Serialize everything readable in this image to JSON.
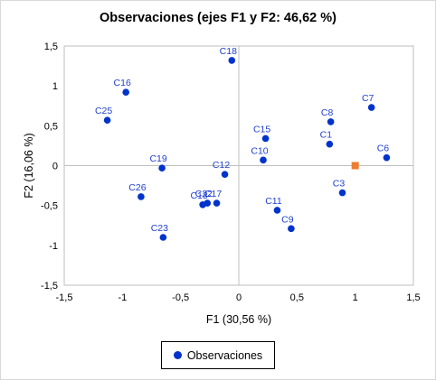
{
  "chart_data": {
    "type": "scatter",
    "title": "Observaciones (ejes F1 y F2: 46,62 %)",
    "xlabel": "F1 (30,56 %)",
    "ylabel": "F2 (16,06 %)",
    "xlim": [
      -1.5,
      1.5
    ],
    "ylim": [
      -1.5,
      1.5
    ],
    "xticks": [
      "-1,5",
      "-1",
      "-0,5",
      "0",
      "0,5",
      "1",
      "1,5"
    ],
    "yticks": [
      "1,5",
      "1",
      "0,5",
      "0",
      "-0,5",
      "-1",
      "-1,5"
    ],
    "grid": false,
    "legend": "bottom",
    "colors": {
      "series": "#0033cc",
      "centroid": "#ed7d31",
      "axes": "#bfbfbf"
    },
    "series": [
      {
        "name": "Observaciones",
        "points": [
          {
            "label": "C18",
            "x": -0.06,
            "y": 1.32
          },
          {
            "label": "C16",
            "x": -0.97,
            "y": 0.92
          },
          {
            "label": "C25",
            "x": -1.13,
            "y": 0.57
          },
          {
            "label": "C7",
            "x": 1.14,
            "y": 0.73
          },
          {
            "label": "C8",
            "x": 0.79,
            "y": 0.55
          },
          {
            "label": "C15",
            "x": 0.23,
            "y": 0.34
          },
          {
            "label": "C1",
            "x": 0.78,
            "y": 0.27
          },
          {
            "label": "C10",
            "x": 0.21,
            "y": 0.07
          },
          {
            "label": "C6",
            "x": 1.27,
            "y": 0.1
          },
          {
            "label": "C19",
            "x": -0.66,
            "y": -0.03
          },
          {
            "label": "C12",
            "x": -0.12,
            "y": -0.11
          },
          {
            "label": "C3",
            "x": 0.89,
            "y": -0.34
          },
          {
            "label": "C26",
            "x": -0.84,
            "y": -0.39
          },
          {
            "label": "C17",
            "x": -0.19,
            "y": -0.47
          },
          {
            "label": "C22",
            "x": -0.27,
            "y": -0.47
          },
          {
            "label": "C13",
            "x": -0.31,
            "y": -0.49
          },
          {
            "label": "C11",
            "x": 0.33,
            "y": -0.56
          },
          {
            "label": "C9",
            "x": 0.45,
            "y": -0.79
          },
          {
            "label": "C23",
            "x": -0.65,
            "y": -0.9
          }
        ]
      }
    ],
    "centroid": {
      "x": 1.0,
      "y": 0.0
    }
  }
}
